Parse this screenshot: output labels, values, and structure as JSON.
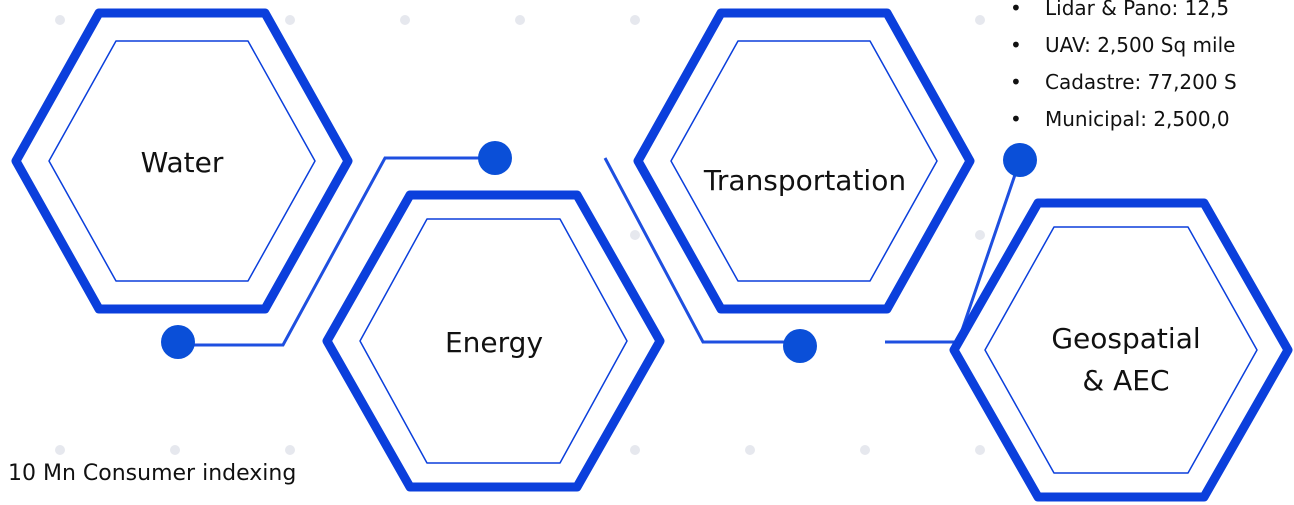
{
  "sectors": {
    "water": "Water",
    "energy": "Energy",
    "transportation": "Transportation",
    "geospatial_line1": "Geospatial",
    "geospatial_line2": "& AEC"
  },
  "stats": [
    "Lidar & Pano: 12,5",
    "UAV: 2,500 Sq mile",
    "Cadastre: 77,200 S",
    "Municipal: 2,500,0"
  ],
  "water_caption": "10 Mn Consumer indexing",
  "colors": {
    "hex_blue": "#0b3fdc",
    "connector": "#1e4fe0",
    "dot": "#0a4fd8",
    "grid_dot": "#e6e8ee"
  }
}
